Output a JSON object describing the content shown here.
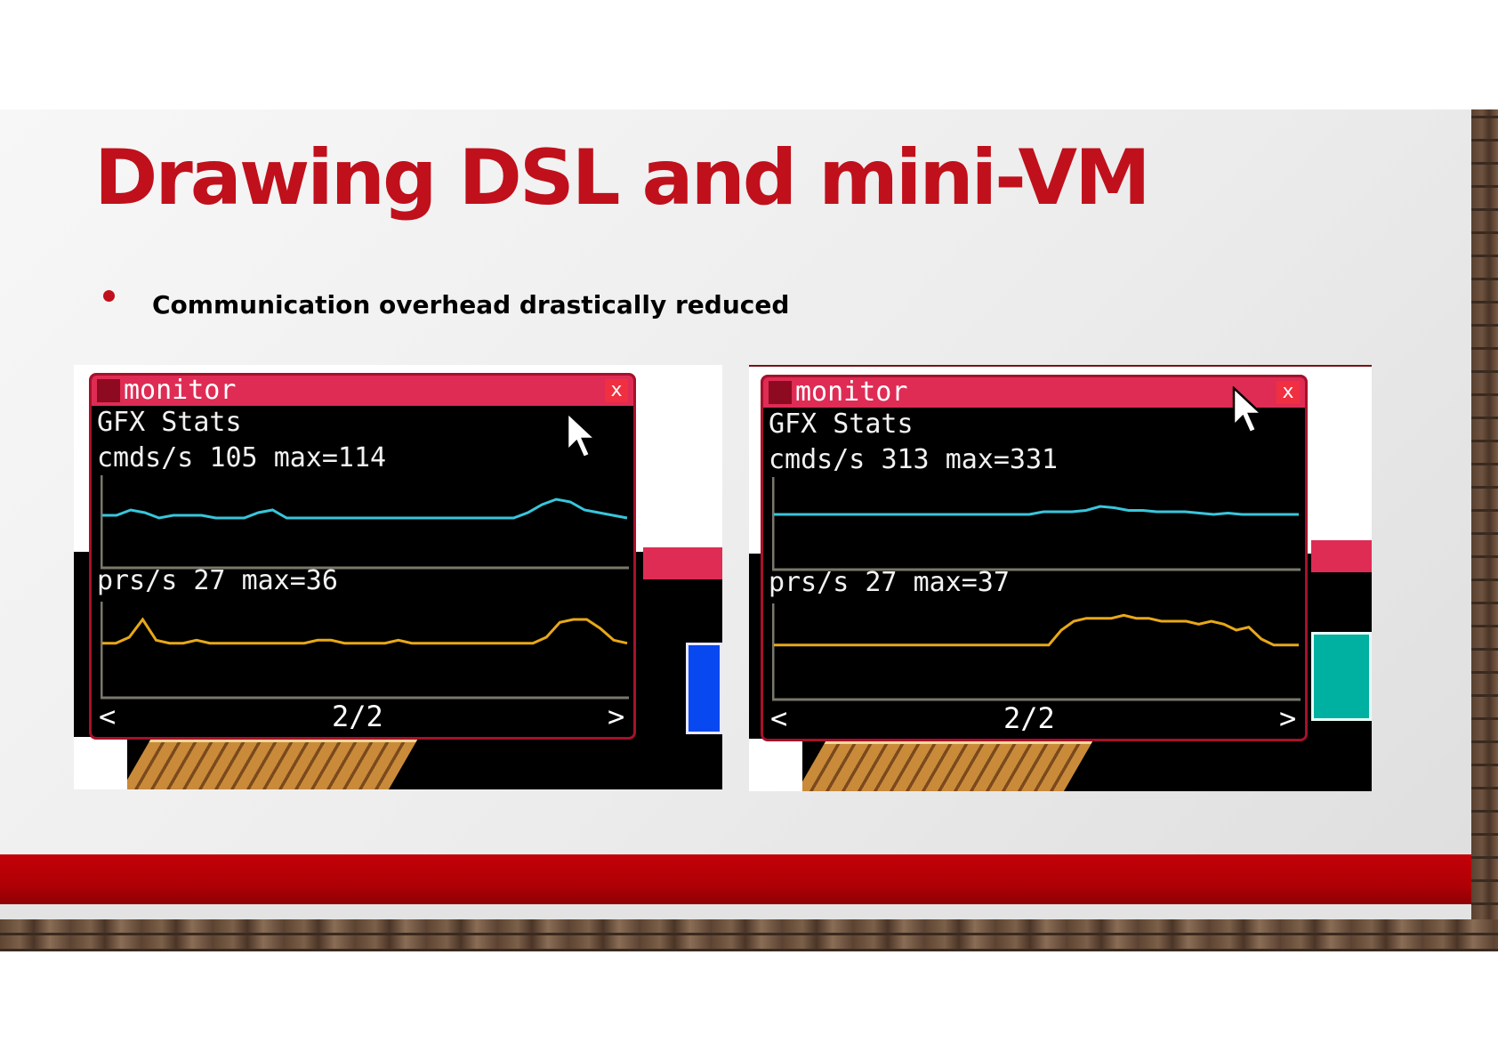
{
  "slide": {
    "title": "Drawing DSL and mini-VM",
    "bullets": [
      "Communication overhead drastically reduced"
    ]
  },
  "colors": {
    "title_red": "#c0101c",
    "window_titlebar": "#de2c55",
    "cmds_line": "#38c6dc",
    "prs_line": "#e8a818",
    "axis": "#7a786a"
  },
  "monitors": [
    {
      "window_title": "monitor",
      "close_label": "x",
      "heading": "GFX Stats",
      "cmds_label": "cmds/s",
      "cmds_value": "105",
      "cmds_max": "max=114",
      "prs_label": "prs/s",
      "prs_value": "27",
      "prs_max": "max=36",
      "page_prev": "<",
      "page": "2/2",
      "page_next": ">",
      "cmds_series": [
        105,
        105,
        107,
        106,
        104,
        105,
        105,
        105,
        104,
        104,
        104,
        106,
        107,
        104,
        104,
        104,
        104,
        104,
        104,
        104,
        104,
        104,
        104,
        104,
        104,
        104,
        104,
        104,
        104,
        104,
        106,
        109,
        111,
        110,
        107,
        106,
        105,
        104
      ],
      "prs_series": [
        19,
        19,
        21,
        27,
        20,
        19,
        19,
        20,
        19,
        19,
        19,
        19,
        19,
        19,
        19,
        19,
        20,
        20,
        19,
        19,
        19,
        19,
        20,
        19,
        19,
        19,
        19,
        19,
        19,
        19,
        19,
        19,
        19,
        21,
        26,
        27,
        27,
        24,
        20,
        19
      ]
    },
    {
      "window_title": "monitor",
      "close_label": "x",
      "heading": "GFX Stats",
      "cmds_label": "cmds/s",
      "cmds_value": "313",
      "cmds_max": "max=331",
      "prs_label": "prs/s",
      "prs_value": "27",
      "prs_max": "max=37",
      "page_prev": "<",
      "page": "2/2",
      "page_next": ">",
      "cmds_series": [
        312,
        312,
        312,
        312,
        312,
        312,
        312,
        312,
        312,
        312,
        312,
        312,
        312,
        312,
        312,
        312,
        312,
        312,
        312,
        314,
        314,
        314,
        315,
        318,
        317,
        315,
        315,
        314,
        314,
        314,
        313,
        312,
        313,
        312,
        312,
        312,
        312,
        312
      ],
      "prs_series": [
        19,
        19,
        19,
        19,
        19,
        19,
        19,
        19,
        19,
        19,
        19,
        19,
        19,
        19,
        19,
        19,
        19,
        19,
        19,
        19,
        19,
        19,
        19,
        24,
        27,
        28,
        28,
        28,
        29,
        28,
        28,
        27,
        27,
        27,
        26,
        27,
        26,
        24,
        25,
        21,
        19,
        19,
        19
      ]
    }
  ]
}
